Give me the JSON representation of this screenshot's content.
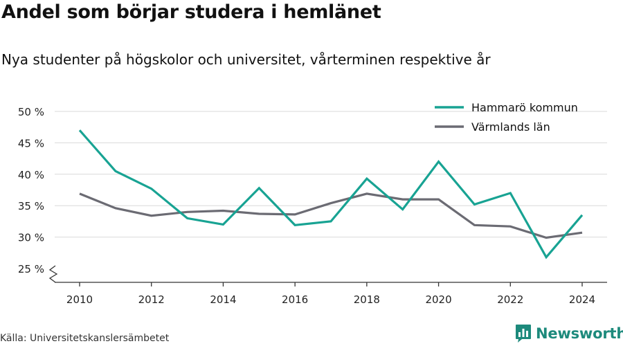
{
  "header": {
    "title": "Andel som börjar studera i hemlänet",
    "subtitle": "Nya studenter på högskolor och universitet, vårterminen respektive år"
  },
  "footer": {
    "source": "Källa: Universitetskanslersämbetet",
    "brand": "Newsworthy"
  },
  "colors": {
    "hammaro": "#18a393",
    "varmland": "#6b6b73",
    "grid": "#d9d9d9",
    "axis": "#333333",
    "brand": "#1d8a7c"
  },
  "chart_data": {
    "type": "line",
    "x": [
      2010,
      2011,
      2012,
      2013,
      2014,
      2015,
      2016,
      2017,
      2018,
      2019,
      2020,
      2021,
      2022,
      2023,
      2024
    ],
    "series": [
      {
        "name": "Hammarö kommun",
        "color": "#18a393",
        "values": [
          47.0,
          40.5,
          37.7,
          33.0,
          32.0,
          37.8,
          31.9,
          32.5,
          39.3,
          34.4,
          42.0,
          35.2,
          37.0,
          26.8,
          33.5
        ]
      },
      {
        "name": "Värmlands län",
        "color": "#6b6b73",
        "values": [
          36.9,
          34.6,
          33.4,
          34.0,
          34.2,
          33.7,
          33.6,
          35.4,
          36.9,
          36.0,
          36.0,
          31.9,
          31.7,
          29.9,
          30.7
        ]
      }
    ],
    "xticks": [
      2010,
      2012,
      2014,
      2016,
      2018,
      2020,
      2022,
      2024
    ],
    "yticks": [
      25,
      30,
      35,
      40,
      45,
      50
    ],
    "ytick_labels": [
      "25 %",
      "30 %",
      "35 %",
      "40 %",
      "45 %",
      "50 %"
    ],
    "ylim": [
      25,
      50
    ],
    "grid": true,
    "legend_position": "top-right",
    "axis_break": true
  }
}
